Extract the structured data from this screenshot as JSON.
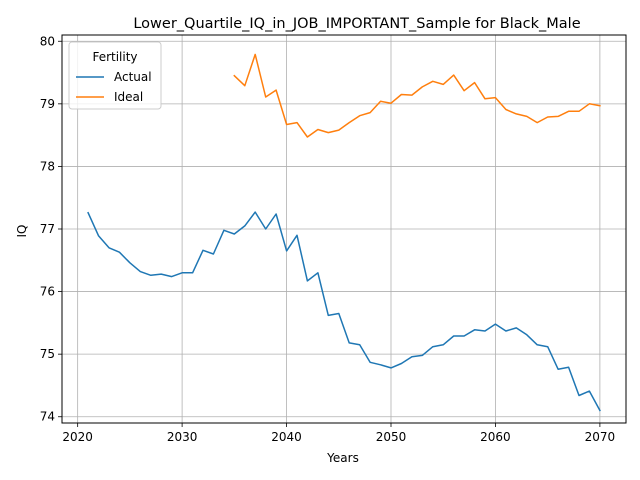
{
  "chart_data": {
    "type": "line",
    "title": "Lower_Quartile_IQ_in_JOB_IMPORTANT_Sample for Black_Male",
    "xlabel": "Years",
    "ylabel": "IQ",
    "xlim": [
      2018.5,
      2072.5
    ],
    "ylim": [
      73.9,
      80.1
    ],
    "x_ticks": [
      2020,
      2030,
      2040,
      2050,
      2060,
      2070
    ],
    "y_ticks": [
      74,
      75,
      76,
      77,
      78,
      79,
      80
    ],
    "grid": true,
    "legend": {
      "title": "Fertility",
      "placement": "top-left"
    },
    "series": [
      {
        "name": "Actual",
        "color": "#1f77b4",
        "x": [
          2021,
          2022,
          2023,
          2024,
          2025,
          2026,
          2027,
          2028,
          2029,
          2030,
          2031,
          2032,
          2033,
          2034,
          2035,
          2036,
          2037,
          2038,
          2039,
          2040,
          2041,
          2042,
          2043,
          2044,
          2045,
          2046,
          2047,
          2048,
          2049,
          2050,
          2051,
          2052,
          2053,
          2054,
          2055,
          2056,
          2057,
          2058,
          2059,
          2060,
          2061,
          2062,
          2063,
          2064,
          2065,
          2066,
          2067,
          2068,
          2069,
          2070
        ],
        "values": [
          77.26,
          76.89,
          76.7,
          76.63,
          76.46,
          76.32,
          76.26,
          76.28,
          76.24,
          76.3,
          76.3,
          76.66,
          76.6,
          76.98,
          76.92,
          77.05,
          77.27,
          77.0,
          77.24,
          76.65,
          76.9,
          76.17,
          76.3,
          75.62,
          75.65,
          75.18,
          75.15,
          74.87,
          74.83,
          74.78,
          74.85,
          74.96,
          74.98,
          75.12,
          75.15,
          75.29,
          75.29,
          75.39,
          75.37,
          75.48,
          75.37,
          75.42,
          75.31,
          75.15,
          75.12,
          74.76,
          74.79,
          74.34,
          74.41,
          74.1
        ]
      },
      {
        "name": "Ideal",
        "color": "#ff7f0e",
        "x": [
          2035,
          2036,
          2037,
          2038,
          2039,
          2040,
          2041,
          2042,
          2043,
          2044,
          2045,
          2046,
          2047,
          2048,
          2049,
          2050,
          2051,
          2052,
          2053,
          2054,
          2055,
          2056,
          2057,
          2058,
          2059,
          2060,
          2061,
          2062,
          2063,
          2064,
          2065,
          2066,
          2067,
          2068,
          2069,
          2070
        ],
        "values": [
          79.45,
          79.29,
          79.79,
          79.11,
          79.22,
          78.67,
          78.7,
          78.47,
          78.59,
          78.54,
          78.58,
          78.7,
          78.81,
          78.86,
          79.04,
          79.01,
          79.15,
          79.14,
          79.27,
          79.36,
          79.31,
          79.46,
          79.21,
          79.34,
          79.08,
          79.1,
          78.91,
          78.84,
          78.8,
          78.7,
          78.79,
          78.8,
          78.88,
          78.88,
          79.0,
          78.97
        ]
      }
    ]
  }
}
